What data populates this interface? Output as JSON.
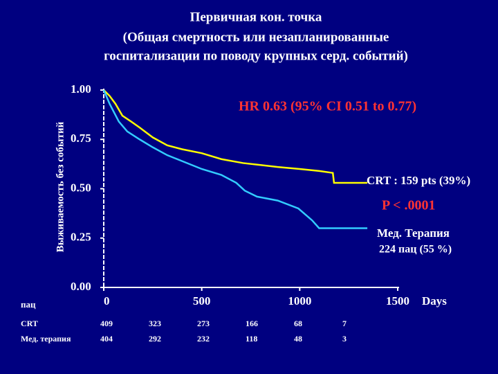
{
  "chart_data": {
    "type": "line",
    "title_lines": [
      "Первичная кон. точка",
      "(Общая смертность или незапланированные",
      "госпитализации по поводу крупных серд. событий)"
    ],
    "y_label": "Выживаемость без событий",
    "x_label": "Days",
    "xlim": [
      0,
      1500
    ],
    "xticks": [
      0,
      500,
      1000,
      1500
    ],
    "ylim": [
      0,
      1
    ],
    "yticks": [
      {
        "value": 0,
        "label": "0.00"
      },
      {
        "value": 0.25,
        "label": "0.25"
      },
      {
        "value": 0.5,
        "label": "0.50"
      },
      {
        "value": 0.75,
        "label": "0.75"
      },
      {
        "value": 1,
        "label": "1.00"
      }
    ],
    "series": [
      {
        "name": "CRT : 159 pts (39%)",
        "color": "#ffff00",
        "x": [
          0,
          30,
          60,
          95,
          140,
          183,
          250,
          324,
          400,
          500,
          600,
          711,
          800,
          888,
          1000,
          1100,
          1169,
          1175,
          1345
        ],
        "values": [
          1,
          0.97,
          0.93,
          0.87,
          0.84,
          0.81,
          0.76,
          0.72,
          0.7,
          0.68,
          0.65,
          0.63,
          0.62,
          0.61,
          0.6,
          0.59,
          0.58,
          0.53,
          0.53
        ]
      },
      {
        "name": "Мед. Терапия",
        "color": "#33ccff",
        "x": [
          0,
          30,
          77,
          120,
          183,
          250,
          324,
          400,
          500,
          600,
          676,
          720,
          782,
          888,
          993,
          1063,
          1099,
          1345
        ],
        "values": [
          1,
          0.93,
          0.84,
          0.79,
          0.75,
          0.71,
          0.67,
          0.64,
          0.6,
          0.57,
          0.53,
          0.49,
          0.46,
          0.44,
          0.4,
          0.34,
          0.3,
          0.3
        ]
      }
    ],
    "annotations": {
      "hr": "HR 0.63 (95% CI 0.51 to 0.77)",
      "p": "P < .0001",
      "med_count": "224 пац  (55 %)"
    },
    "risk_table": {
      "label": "пац",
      "rows": [
        {
          "name": "CRT",
          "values": [
            409,
            323,
            273,
            166,
            68,
            7
          ]
        },
        {
          "name": "Мед. терапия",
          "values": [
            404,
            292,
            232,
            118,
            48,
            3
          ]
        }
      ]
    }
  }
}
